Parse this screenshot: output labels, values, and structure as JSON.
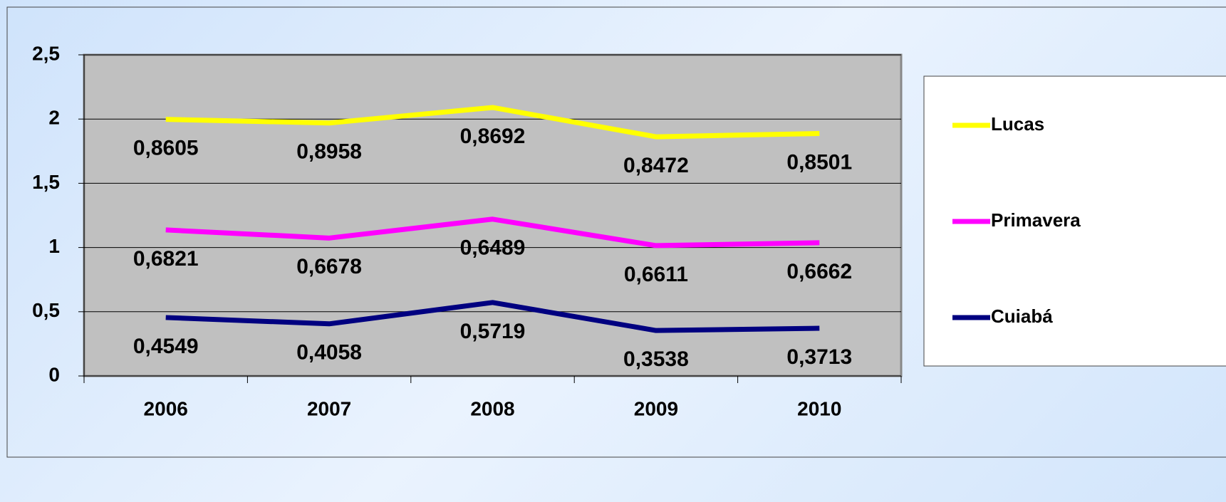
{
  "chart_data": {
    "type": "line",
    "stacked": true,
    "categories": [
      "2006",
      "2007",
      "2008",
      "2009",
      "2010"
    ],
    "series": [
      {
        "name": "Cuiabá",
        "color": "#000080",
        "values": [
          0.4549,
          0.4058,
          0.5719,
          0.3538,
          0.3713
        ],
        "value_labels": [
          "0,4549",
          "0,4058",
          "0,5719",
          "0,3538",
          "0,3713"
        ]
      },
      {
        "name": "Primavera",
        "color": "#ff00ff",
        "values": [
          0.6821,
          0.6678,
          0.6489,
          0.6611,
          0.6662
        ],
        "value_labels": [
          "0,6821",
          "0,6678",
          "0,6489",
          "0,6611",
          "0,6662"
        ]
      },
      {
        "name": "Lucas",
        "color": "#ffff00",
        "values": [
          0.8605,
          0.8958,
          0.8692,
          0.8472,
          0.8501
        ],
        "value_labels": [
          "0,8605",
          "0,8958",
          "0,8692",
          "0,8472",
          "0,8501"
        ]
      }
    ],
    "ylim": [
      0,
      2.5
    ],
    "yticks": [
      0,
      {
        "value": 0.5,
        "label": "0,5"
      },
      1,
      {
        "value": 1.5,
        "label": "1,5"
      },
      2,
      {
        "value": 2.5,
        "label": "2,5"
      }
    ],
    "grid": true,
    "legend": "right",
    "plot_background": "#c0c0c0"
  }
}
